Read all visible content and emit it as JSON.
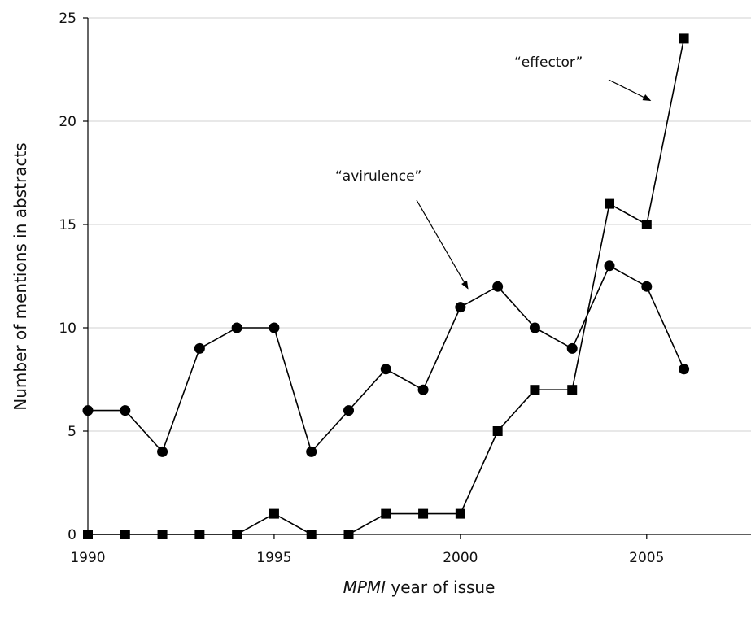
{
  "chart_data": {
    "type": "line",
    "x": [
      1990,
      1991,
      1992,
      1993,
      1994,
      1995,
      1996,
      1997,
      1998,
      1999,
      2000,
      2001,
      2002,
      2003,
      2004,
      2005,
      2006
    ],
    "series": [
      {
        "marker": "circle",
        "values": [
          6,
          6,
          4,
          9,
          10,
          10,
          4,
          6,
          8,
          7,
          11,
          12,
          10,
          9,
          13,
          12,
          8
        ]
      },
      {
        "marker": "square",
        "values": [
          0,
          0,
          0,
          0,
          0,
          1,
          0,
          0,
          1,
          1,
          1,
          5,
          7,
          7,
          16,
          15,
          24
        ]
      }
    ],
    "xlabel_italic": "MPMI",
    "xlabel_rest": " year of issue",
    "ylabel": "Number of mentions in abstracts",
    "xlim": [
      1990,
      2007.8
    ],
    "ylim": [
      0,
      25
    ],
    "xticks": [
      1990,
      1995,
      2000,
      2005
    ],
    "yticks": [
      0,
      5,
      10,
      15,
      20,
      25
    ],
    "grid": true,
    "annotations": [
      {
        "text": "“effector”",
        "points_to": {
          "x": 2005.1,
          "y": 21.0
        }
      },
      {
        "text": "“avirulence”",
        "points_to": {
          "x": 2000.2,
          "y": 11.9
        }
      }
    ],
    "colors": {
      "line": "#000000",
      "grid": "#d9d9d9",
      "axis": "#000000"
    }
  }
}
